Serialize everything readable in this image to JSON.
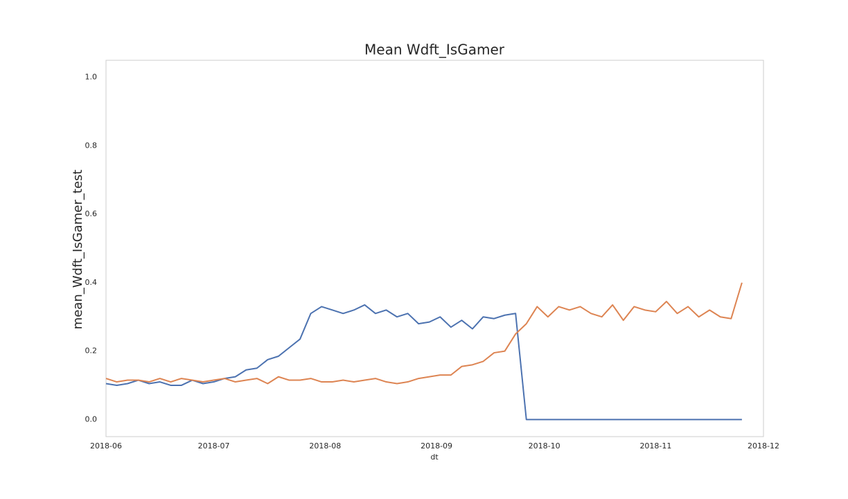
{
  "chart_data": {
    "type": "line",
    "title": "Mean Wdft_IsGamer",
    "xlabel": "dt",
    "ylabel": "mean_Wdft_IsGamer_test",
    "x": [
      "2018-06-01",
      "2018-06-04",
      "2018-06-07",
      "2018-06-10",
      "2018-06-13",
      "2018-06-16",
      "2018-06-19",
      "2018-06-22",
      "2018-06-25",
      "2018-06-28",
      "2018-07-01",
      "2018-07-04",
      "2018-07-07",
      "2018-07-10",
      "2018-07-13",
      "2018-07-16",
      "2018-07-19",
      "2018-07-22",
      "2018-07-25",
      "2018-07-28",
      "2018-07-31",
      "2018-08-03",
      "2018-08-06",
      "2018-08-09",
      "2018-08-12",
      "2018-08-15",
      "2018-08-18",
      "2018-08-21",
      "2018-08-24",
      "2018-08-27",
      "2018-08-30",
      "2018-09-02",
      "2018-09-05",
      "2018-09-08",
      "2018-09-11",
      "2018-09-14",
      "2018-09-17",
      "2018-09-20",
      "2018-09-23",
      "2018-09-26",
      "2018-09-29",
      "2018-10-02",
      "2018-10-05",
      "2018-10-08",
      "2018-10-11",
      "2018-10-14",
      "2018-10-17",
      "2018-10-20",
      "2018-10-23",
      "2018-10-26",
      "2018-10-29",
      "2018-11-01",
      "2018-11-04",
      "2018-11-07",
      "2018-11-10",
      "2018-11-13",
      "2018-11-16",
      "2018-11-19",
      "2018-11-22",
      "2018-11-25"
    ],
    "series": [
      {
        "color": "#4c72b0",
        "values": [
          0.105,
          0.1,
          0.105,
          0.115,
          0.105,
          0.11,
          0.1,
          0.1,
          0.115,
          0.105,
          0.11,
          0.12,
          0.125,
          0.145,
          0.15,
          0.175,
          0.185,
          0.21,
          0.235,
          0.31,
          0.33,
          0.32,
          0.31,
          0.32,
          0.335,
          0.31,
          0.32,
          0.3,
          0.31,
          0.28,
          0.285,
          0.3,
          0.27,
          0.29,
          0.265,
          0.3,
          0.295,
          0.305,
          0.31,
          0,
          0,
          0,
          0,
          0,
          0,
          0,
          0,
          0,
          0,
          0,
          0,
          0,
          0,
          0,
          0,
          0,
          0,
          0,
          0,
          0
        ]
      },
      {
        "color": "#dd8452",
        "values": [
          0.12,
          0.11,
          0.115,
          0.115,
          0.11,
          0.12,
          0.11,
          0.12,
          0.115,
          0.11,
          0.115,
          0.12,
          0.11,
          0.115,
          0.12,
          0.105,
          0.125,
          0.115,
          0.115,
          0.12,
          0.11,
          0.11,
          0.115,
          0.11,
          0.115,
          0.12,
          0.11,
          0.105,
          0.11,
          0.12,
          0.125,
          0.13,
          0.13,
          0.155,
          0.16,
          0.17,
          0.195,
          0.2,
          0.25,
          0.28,
          0.33,
          0.3,
          0.33,
          0.32,
          0.33,
          0.31,
          0.3,
          0.335,
          0.29,
          0.33,
          0.32,
          0.315,
          0.345,
          0.31,
          0.33,
          0.3,
          0.32,
          0.3,
          0.295,
          0.4
        ]
      }
    ],
    "xlim": [
      "2018-06",
      "2018-12"
    ],
    "xticks": [
      "2018-06",
      "2018-07",
      "2018-08",
      "2018-09",
      "2018-10",
      "2018-11",
      "2018-12"
    ],
    "ylim": [
      -0.05,
      1.05
    ],
    "yticks": [
      {
        "value": 0,
        "label": "0.0"
      },
      0.2,
      0.4,
      0.6,
      0.8,
      {
        "value": 1,
        "label": "1.0"
      }
    ],
    "grid": false
  }
}
